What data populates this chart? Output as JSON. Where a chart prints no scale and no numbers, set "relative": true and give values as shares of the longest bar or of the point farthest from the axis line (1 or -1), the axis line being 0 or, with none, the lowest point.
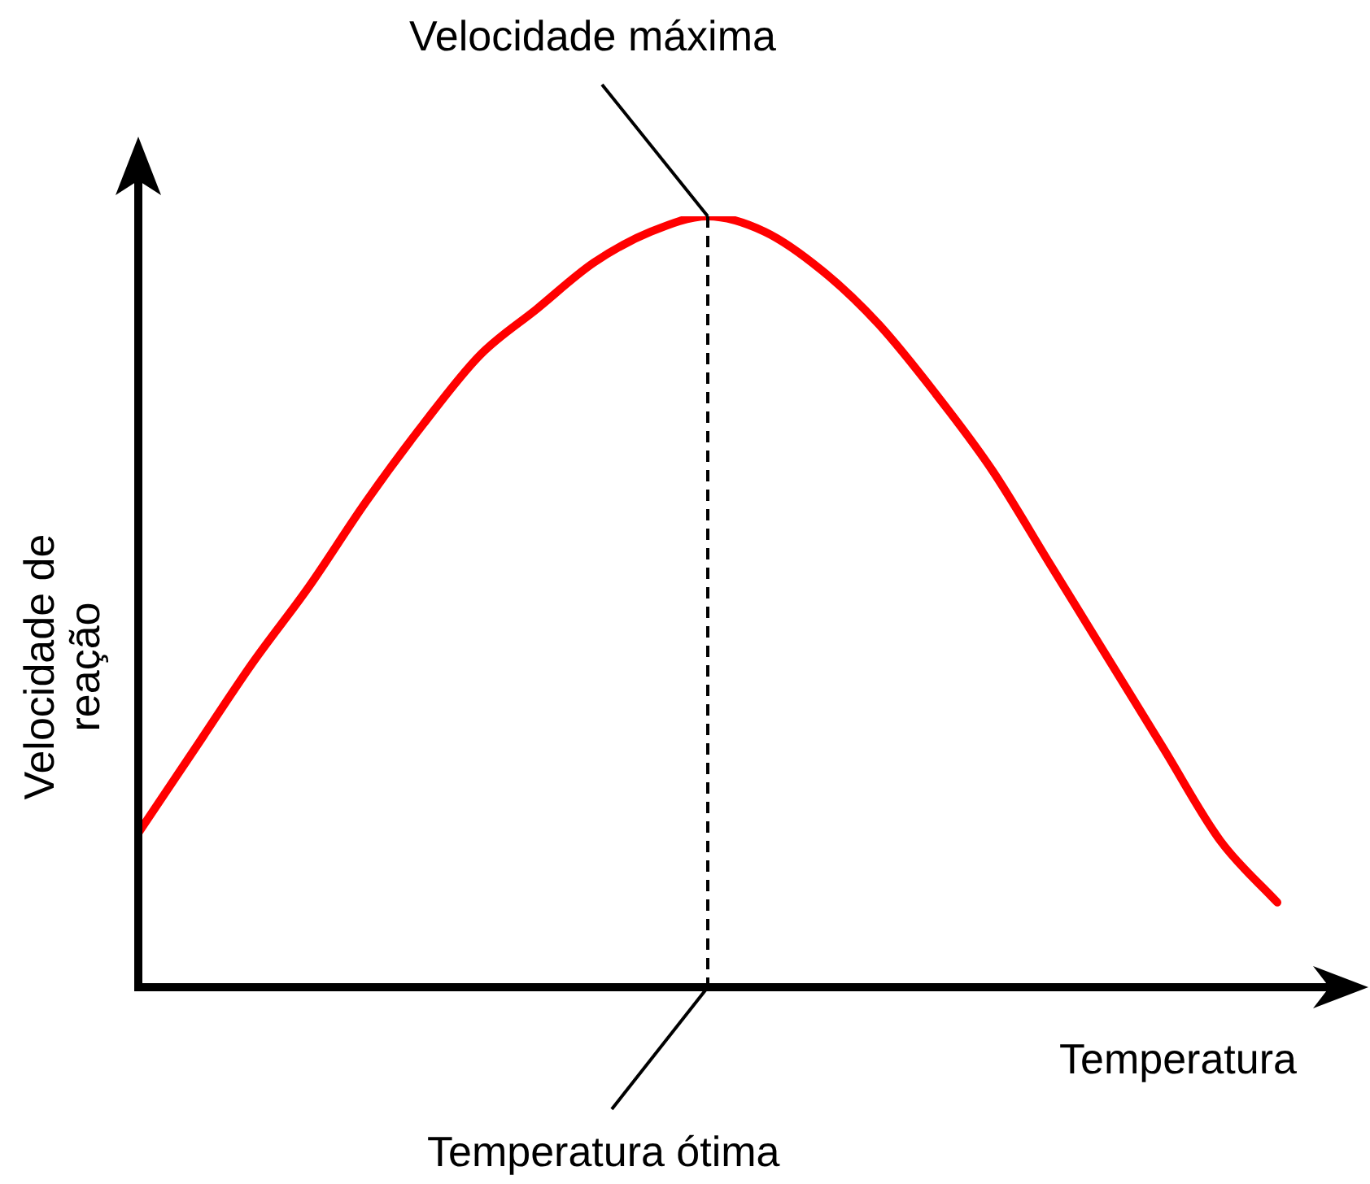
{
  "chart_data": {
    "type": "line",
    "relative": true,
    "xlabel": "Temperatura",
    "ylabel": "Velocidade de reação",
    "categories": [
      null,
      null,
      null,
      null,
      null,
      null,
      null,
      null,
      null,
      null,
      null,
      null,
      null,
      null,
      null,
      null,
      null,
      null,
      null,
      null,
      null
    ],
    "series": [
      {
        "color": "#ff0000",
        "values": [
          0.2,
          0.31,
          0.42,
          0.52,
          0.63,
          0.73,
          0.82,
          0.88,
          0.94,
          0.98,
          1,
          0.98,
          0.93,
          0.86,
          0.77,
          0.67,
          0.55,
          0.43,
          0.31,
          0.19,
          0.11
        ]
      }
    ],
    "annotations": [
      "Velocidade máxima",
      "Temperatura ótima"
    ]
  }
}
